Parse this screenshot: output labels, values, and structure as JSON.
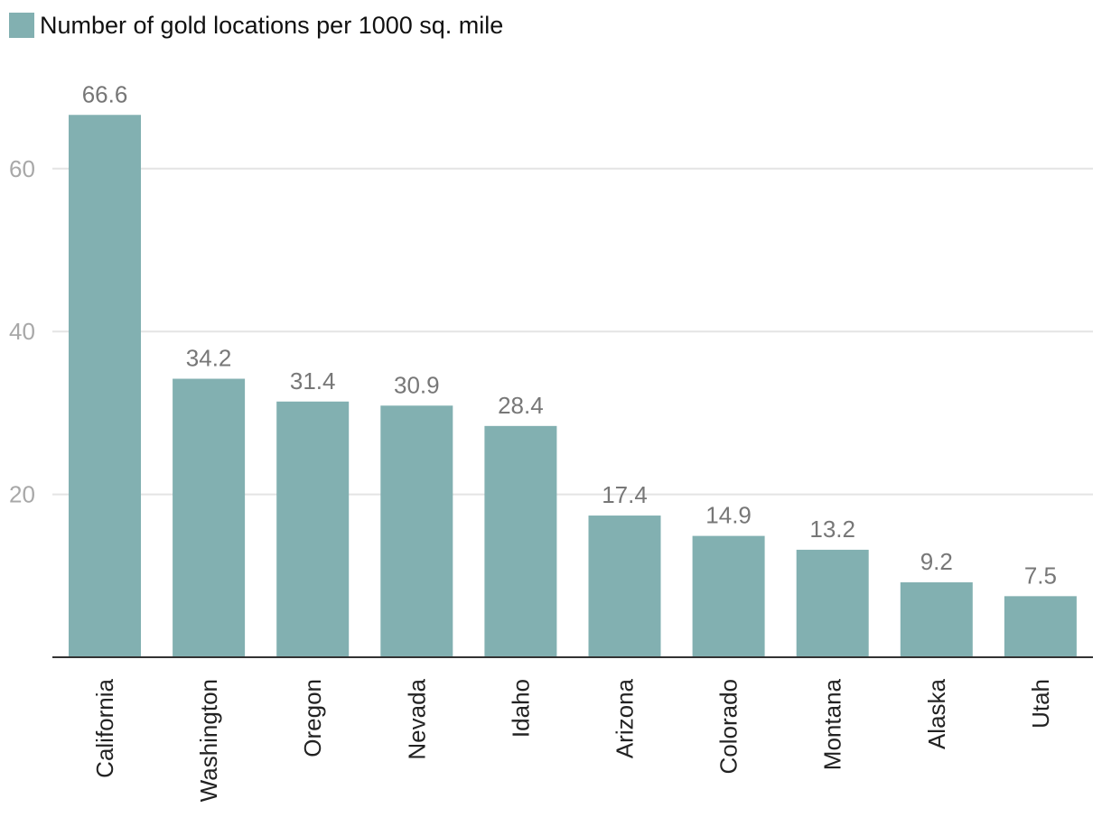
{
  "chart_data": {
    "type": "bar",
    "title": "",
    "xlabel": "",
    "ylabel": "",
    "legend": {
      "entries": [
        "Number of gold locations per 1000 sq. mile"
      ],
      "placement": "top-left"
    },
    "categories": [
      "California",
      "Washington",
      "Oregon",
      "Nevada",
      "Idaho",
      "Arizona",
      "Colorado",
      "Montana",
      "Alaska",
      "Utah"
    ],
    "series": [
      {
        "name": "Number of gold locations per 1000 sq. mile",
        "values": [
          66.6,
          34.2,
          31.4,
          30.9,
          28.4,
          17.4,
          14.9,
          13.2,
          9.2,
          7.5
        ]
      }
    ],
    "data_labels": [
      "66.6",
      "34.2",
      "31.4",
      "30.9",
      "28.4",
      "17.4",
      "14.9",
      "13.2",
      "9.2",
      "7.5"
    ],
    "y_ticks": [
      20,
      40,
      60
    ],
    "y_tick_labels": [
      "20",
      "40",
      "60"
    ],
    "ylim": [
      0,
      70
    ],
    "grid": true,
    "colors": {
      "bar": "#82b0b1",
      "grid": "#e4e4e4",
      "axis": "#333333"
    }
  }
}
